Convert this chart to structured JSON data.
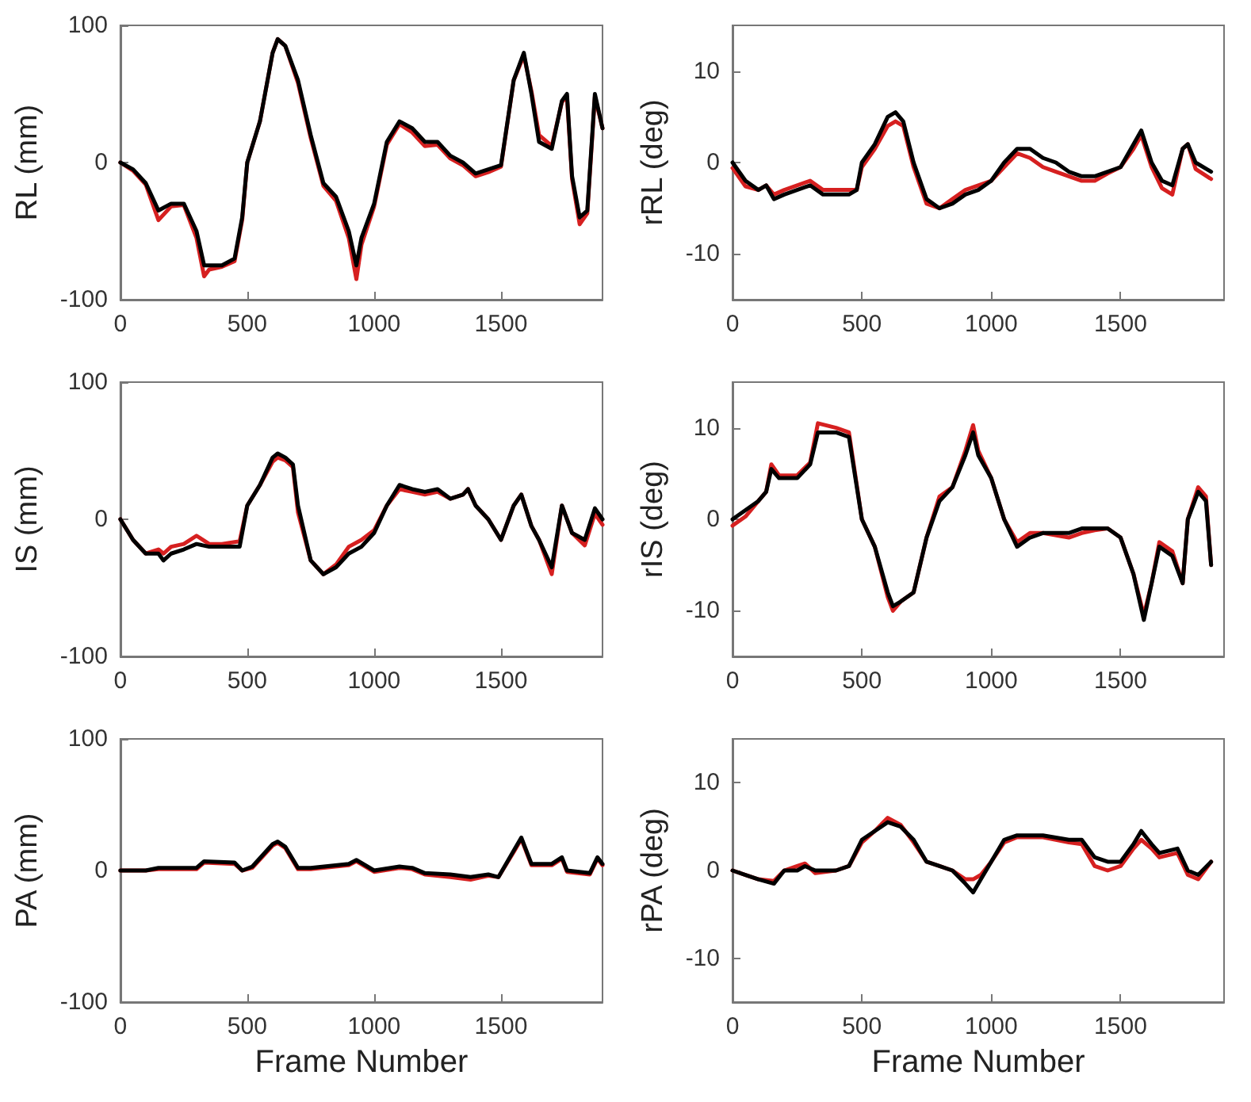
{
  "chart_data": [
    {
      "type": "line",
      "ylabel": "RL (mm)",
      "xlim": [
        0,
        1900
      ],
      "xticks": [
        0,
        500,
        1000,
        1500
      ],
      "ylim": [
        -100,
        100
      ],
      "yticks": [
        -100,
        0,
        100
      ],
      "x": [
        0,
        50,
        100,
        150,
        200,
        250,
        300,
        330,
        350,
        400,
        450,
        480,
        500,
        550,
        600,
        620,
        650,
        700,
        750,
        800,
        850,
        900,
        930,
        950,
        1000,
        1050,
        1100,
        1150,
        1200,
        1250,
        1300,
        1350,
        1400,
        1450,
        1500,
        1550,
        1590,
        1620,
        1650,
        1700,
        1740,
        1760,
        1780,
        1810,
        1840,
        1870,
        1900
      ],
      "series": [
        {
          "color": "#d62020",
          "values": [
            0,
            -6,
            -16,
            -42,
            -32,
            -31,
            -55,
            -83,
            -78,
            -76,
            -72,
            -42,
            0,
            30,
            80,
            90,
            85,
            58,
            18,
            -17,
            -28,
            -55,
            -85,
            -60,
            -32,
            13,
            28,
            22,
            12,
            13,
            3,
            -2,
            -10,
            -7,
            -3,
            60,
            78,
            52,
            20,
            12,
            44,
            48,
            -12,
            -45,
            -37,
            48,
            25
          ]
        },
        {
          "color": "#000000",
          "values": [
            0,
            -5,
            -15,
            -35,
            -30,
            -30,
            -50,
            -75,
            -75,
            -75,
            -70,
            -40,
            0,
            30,
            80,
            90,
            85,
            60,
            20,
            -15,
            -25,
            -50,
            -75,
            -55,
            -30,
            15,
            30,
            25,
            15,
            15,
            5,
            0,
            -8,
            -5,
            -2,
            60,
            80,
            50,
            15,
            10,
            45,
            50,
            -10,
            -40,
            -35,
            50,
            25
          ]
        }
      ]
    },
    {
      "type": "line",
      "ylabel": "rRL (deg)",
      "xlim": [
        0,
        1900
      ],
      "xticks": [
        0,
        500,
        1000,
        1500
      ],
      "ylim": [
        -15,
        15
      ],
      "yticks": [
        -10,
        0,
        10
      ],
      "x": [
        0,
        50,
        100,
        130,
        160,
        200,
        300,
        350,
        450,
        480,
        500,
        550,
        600,
        630,
        660,
        700,
        750,
        800,
        850,
        900,
        950,
        1000,
        1050,
        1100,
        1150,
        1200,
        1250,
        1300,
        1350,
        1400,
        1450,
        1500,
        1550,
        1580,
        1620,
        1660,
        1700,
        1740,
        1760,
        1790,
        1850
      ],
      "series": [
        {
          "color": "#d62020",
          "values": [
            -0.6,
            -2.6,
            -3,
            -2.5,
            -3.5,
            -3,
            -2,
            -3,
            -3,
            -3,
            -0.5,
            1.5,
            4,
            4.5,
            4,
            -0.5,
            -4.5,
            -5,
            -4,
            -3,
            -2.5,
            -2,
            -0.5,
            1,
            0.5,
            -0.5,
            -1,
            -1.5,
            -2,
            -2,
            -1.2,
            -0.5,
            1.5,
            3,
            -0.5,
            -2.8,
            -3.5,
            1.5,
            2,
            -0.7,
            -1.8
          ]
        },
        {
          "color": "#000000",
          "values": [
            0,
            -2,
            -3,
            -2.5,
            -4,
            -3.5,
            -2.5,
            -3.5,
            -3.5,
            -3,
            0,
            2,
            5,
            5.5,
            4.5,
            0,
            -4,
            -5,
            -4.5,
            -3.5,
            -3,
            -2,
            0,
            1.5,
            1.5,
            0.5,
            0,
            -1,
            -1.5,
            -1.5,
            -1,
            -0.5,
            2,
            3.5,
            0,
            -2,
            -2.5,
            1.5,
            2,
            0,
            -1
          ]
        }
      ]
    },
    {
      "type": "line",
      "ylabel": "IS (mm)",
      "xlim": [
        0,
        1900
      ],
      "xticks": [
        0,
        500,
        1000,
        1500
      ],
      "ylim": [
        -100,
        100
      ],
      "yticks": [
        -100,
        0,
        100
      ],
      "x": [
        0,
        50,
        100,
        150,
        170,
        200,
        250,
        300,
        350,
        400,
        470,
        500,
        550,
        600,
        620,
        650,
        680,
        700,
        750,
        800,
        850,
        900,
        950,
        1000,
        1050,
        1100,
        1150,
        1200,
        1250,
        1300,
        1350,
        1370,
        1400,
        1450,
        1500,
        1550,
        1580,
        1620,
        1650,
        1700,
        1740,
        1780,
        1830,
        1870,
        1900
      ],
      "series": [
        {
          "color": "#d62020",
          "values": [
            0,
            -15,
            -25,
            -22,
            -25,
            -20,
            -18,
            -12,
            -18,
            -18,
            -16,
            10,
            25,
            42,
            45,
            43,
            38,
            5,
            -30,
            -40,
            -33,
            -20,
            -15,
            -8,
            10,
            22,
            20,
            18,
            20,
            15,
            18,
            22,
            10,
            0,
            -15,
            10,
            18,
            -5,
            -15,
            -40,
            10,
            -10,
            -19,
            4,
            -4
          ]
        },
        {
          "color": "#000000",
          "values": [
            0,
            -15,
            -25,
            -25,
            -30,
            -25,
            -22,
            -18,
            -20,
            -20,
            -20,
            10,
            25,
            45,
            48,
            45,
            40,
            10,
            -30,
            -40,
            -35,
            -25,
            -20,
            -10,
            10,
            25,
            22,
            20,
            22,
            15,
            18,
            22,
            10,
            0,
            -15,
            10,
            18,
            -5,
            -15,
            -35,
            10,
            -10,
            -15,
            8,
            0
          ]
        }
      ]
    },
    {
      "type": "line",
      "ylabel": "rIS (deg)",
      "xlim": [
        0,
        1900
      ],
      "xticks": [
        0,
        500,
        1000,
        1500
      ],
      "ylim": [
        -15,
        15
      ],
      "yticks": [
        -10,
        0,
        10
      ],
      "x": [
        0,
        50,
        100,
        130,
        150,
        180,
        250,
        300,
        330,
        400,
        450,
        500,
        550,
        600,
        620,
        650,
        700,
        750,
        800,
        850,
        900,
        930,
        950,
        1000,
        1050,
        1100,
        1150,
        1200,
        1300,
        1350,
        1400,
        1450,
        1500,
        1550,
        1590,
        1620,
        1650,
        1700,
        1740,
        1760,
        1800,
        1830,
        1850
      ],
      "series": [
        {
          "color": "#d62020",
          "values": [
            -0.7,
            0.3,
            2,
            3,
            6,
            4.8,
            4.8,
            6.2,
            10.5,
            10,
            9.5,
            0,
            -3,
            -8.5,
            -10,
            -9,
            -8,
            -2,
            2.5,
            3.5,
            7.5,
            10.3,
            7.5,
            4.5,
            0,
            -2.5,
            -1.5,
            -1.5,
            -2,
            -1.5,
            -1.2,
            -1,
            -2,
            -6,
            -10.5,
            -7,
            -2.5,
            -3.5,
            -7,
            0,
            3.5,
            2.5,
            -5
          ]
        },
        {
          "color": "#000000",
          "values": [
            0,
            1,
            2,
            3,
            5.5,
            4.5,
            4.5,
            6,
            9.5,
            9.5,
            9,
            0,
            -3,
            -8,
            -9.5,
            -9,
            -8,
            -2,
            2,
            3.5,
            7,
            9.5,
            7,
            4.5,
            0,
            -3,
            -2,
            -1.5,
            -1.5,
            -1,
            -1,
            -1,
            -2,
            -6,
            -11,
            -7,
            -3,
            -4,
            -7,
            0,
            3,
            2,
            -5
          ]
        }
      ]
    },
    {
      "type": "line",
      "xlabel": "Frame Number",
      "ylabel": "PA (mm)",
      "xlim": [
        0,
        1900
      ],
      "xticks": [
        0,
        500,
        1000,
        1500
      ],
      "ylim": [
        -100,
        100
      ],
      "yticks": [
        -100,
        0,
        100
      ],
      "x": [
        0,
        100,
        150,
        300,
        330,
        450,
        480,
        520,
        600,
        620,
        650,
        700,
        750,
        900,
        930,
        1000,
        1100,
        1150,
        1200,
        1300,
        1380,
        1450,
        1490,
        1550,
        1580,
        1620,
        1700,
        1740,
        1760,
        1850,
        1880,
        1900
      ],
      "series": [
        {
          "color": "#d62020",
          "values": [
            0,
            0,
            1,
            1,
            6,
            5,
            0,
            2,
            19,
            21,
            17,
            1,
            1,
            4,
            7,
            -1,
            2,
            1,
            -3,
            -5,
            -7,
            -4,
            -5,
            14,
            24,
            4,
            4,
            9,
            -1,
            -3,
            9,
            4
          ]
        },
        {
          "color": "#000000",
          "values": [
            0,
            0,
            2,
            2,
            7,
            6,
            0,
            3,
            20,
            22,
            18,
            2,
            2,
            5,
            8,
            0,
            3,
            2,
            -2,
            -3,
            -5,
            -3,
            -5,
            15,
            25,
            5,
            5,
            10,
            0,
            -2,
            10,
            5
          ]
        }
      ]
    },
    {
      "type": "line",
      "xlabel": "Frame Number",
      "ylabel": "rPA (deg)",
      "xlim": [
        0,
        1900
      ],
      "xticks": [
        0,
        500,
        1000,
        1500
      ],
      "ylim": [
        -15,
        15
      ],
      "yticks": [
        -10,
        0,
        10
      ],
      "x": [
        0,
        50,
        100,
        160,
        200,
        250,
        280,
        320,
        400,
        450,
        500,
        550,
        600,
        650,
        700,
        750,
        800,
        850,
        900,
        930,
        960,
        1000,
        1050,
        1100,
        1200,
        1300,
        1350,
        1400,
        1450,
        1500,
        1550,
        1580,
        1620,
        1650,
        1720,
        1760,
        1800,
        1850
      ],
      "series": [
        {
          "color": "#d62020",
          "values": [
            0,
            -0.5,
            -1,
            -1.2,
            0,
            0.5,
            0.8,
            -0.3,
            0,
            0.5,
            3.2,
            4.5,
            6,
            5.2,
            3.2,
            1,
            0.5,
            0,
            -1,
            -1,
            -0.5,
            1,
            3.2,
            3.8,
            3.8,
            3.2,
            3,
            0.5,
            0,
            0.5,
            2.5,
            3.5,
            2.5,
            1.5,
            2,
            -0.5,
            -1,
            1
          ]
        },
        {
          "color": "#000000",
          "values": [
            0,
            -0.5,
            -1,
            -1.5,
            0,
            0,
            0.5,
            0,
            0,
            0.5,
            3.5,
            4.5,
            5.5,
            5,
            3.5,
            1,
            0.5,
            0,
            -1.5,
            -2.5,
            -1,
            1,
            3.5,
            4,
            4,
            3.5,
            3.5,
            1.5,
            1,
            1,
            3,
            4.5,
            3,
            2,
            2.5,
            0,
            -0.5,
            1
          ]
        }
      ]
    }
  ]
}
